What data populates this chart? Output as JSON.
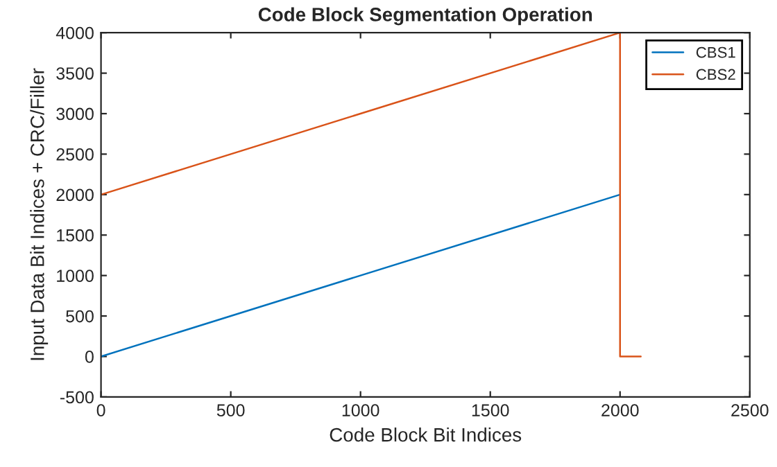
{
  "chart_data": {
    "type": "line",
    "title": "Code Block Segmentation Operation",
    "xlabel": "Code Block Bit Indices",
    "ylabel": "Input Data Bit Indices + CRC/Filler",
    "series": [
      {
        "name": "CBS1",
        "color": "#0072bd",
        "x": [
          0,
          2000
        ],
        "values": [
          0,
          2000
        ]
      },
      {
        "name": "CBS2",
        "color": "#d95319",
        "x": [
          0,
          2000,
          2000,
          2080
        ],
        "values": [
          2000,
          4000,
          0,
          0
        ]
      }
    ],
    "xlim": [
      0,
      2500
    ],
    "xticks": [
      0,
      500,
      1000,
      1500,
      2000,
      2500
    ],
    "ylim": [
      -500,
      4000
    ],
    "yticks": [
      -500,
      0,
      500,
      1000,
      1500,
      2000,
      2500,
      3000,
      3500,
      4000
    ],
    "grid": false,
    "legend": "top right",
    "line_style": "solid"
  }
}
